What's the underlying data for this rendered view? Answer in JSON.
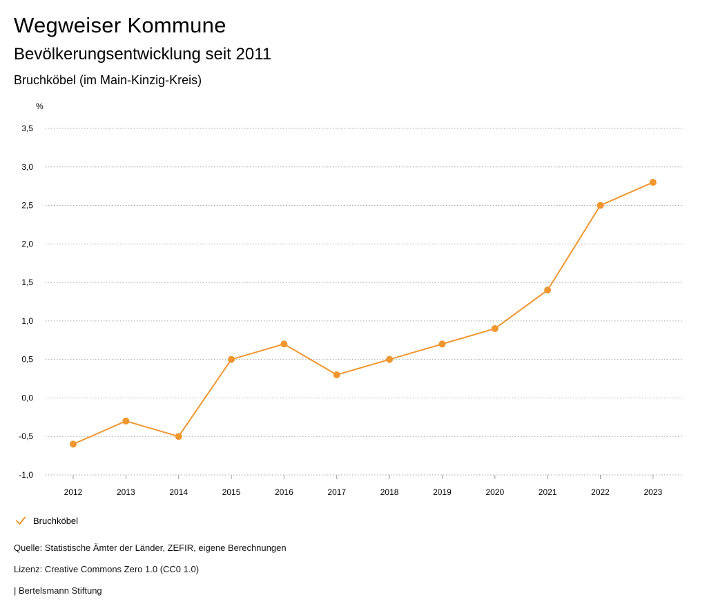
{
  "header": {
    "title": "Wegweiser Kommune",
    "subtitle": "Bevölkerungsentwicklung seit 2011",
    "region": "Bruchköbel (im Main-Kinzig-Kreis)"
  },
  "chart_data": {
    "type": "line",
    "ylabel": "%",
    "ylim": [
      -1.0,
      3.5
    ],
    "yticks": [
      -1.0,
      -0.5,
      0.0,
      0.5,
      1.0,
      1.5,
      2.0,
      2.5,
      3.0,
      3.5
    ],
    "ytick_labels": [
      "-1,0",
      "-0,5",
      "0,0",
      "0,5",
      "1,0",
      "1,5",
      "2,0",
      "2,5",
      "3,0",
      "3,5"
    ],
    "x": [
      "2012",
      "2013",
      "2014",
      "2015",
      "2016",
      "2017",
      "2018",
      "2019",
      "2020",
      "2021",
      "2022",
      "2023"
    ],
    "grid": true,
    "legend_position": "bottom-left",
    "series": [
      {
        "name": "Bruchköbel",
        "color": "#f0962e",
        "values": [
          -0.6,
          -0.3,
          -0.5,
          0.5,
          0.7,
          0.3,
          0.5,
          0.7,
          0.9,
          1.4,
          2.5,
          2.8
        ]
      }
    ]
  },
  "legend": {
    "label": "Bruchköbel",
    "icon": "check-icon"
  },
  "footer": {
    "source": "Quelle: Statistische Ämter der Länder, ZEFIR, eigene Berechnungen",
    "license": "Lizenz: Creative Commons Zero 1.0 (CC0 1.0)",
    "publisher": "| Bertelsmann Stiftung"
  }
}
